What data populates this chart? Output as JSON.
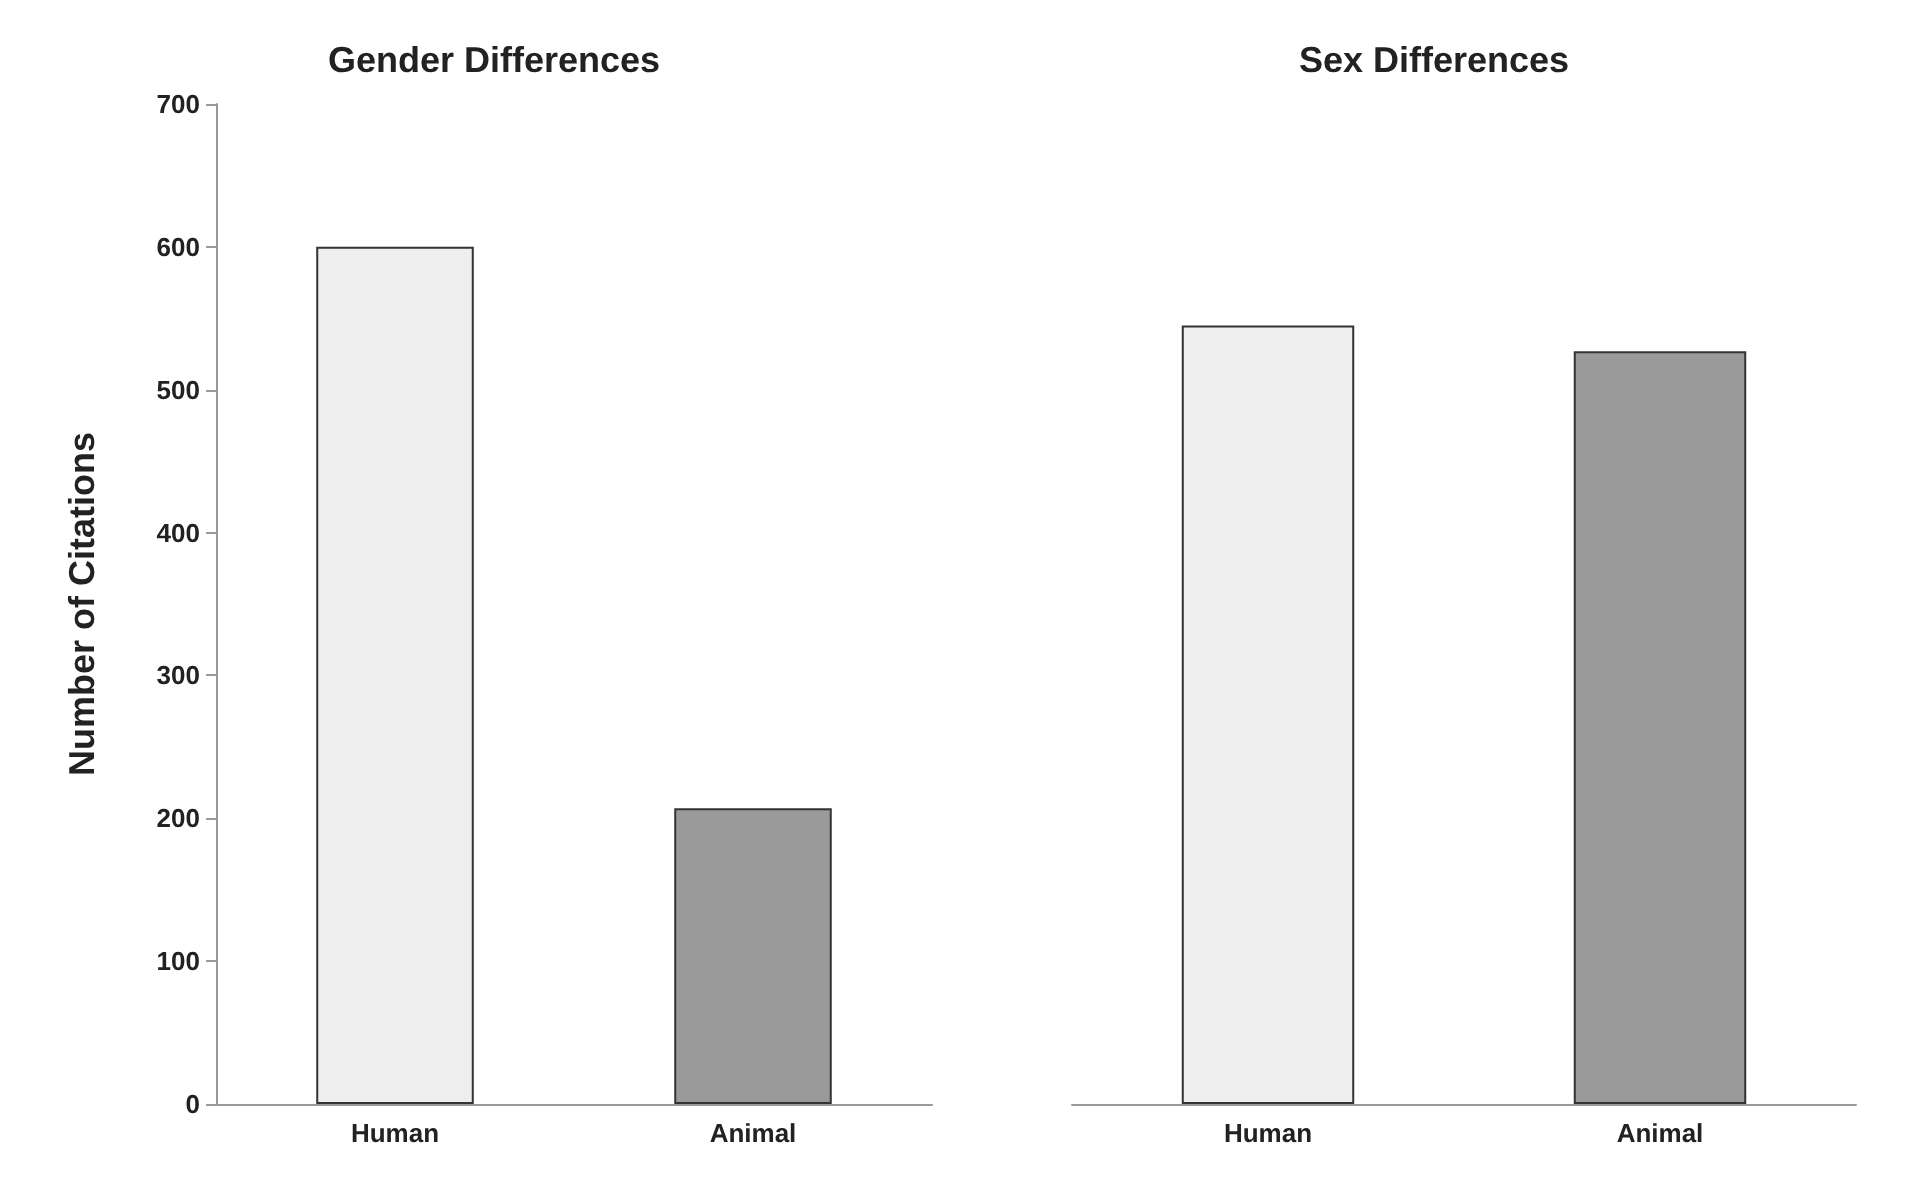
{
  "chart_data": [
    {
      "type": "bar",
      "title": "Gender Differences",
      "ylabel": "Number of Citations",
      "categories": [
        "Human",
        "Animal"
      ],
      "values": [
        600,
        207
      ],
      "colors": [
        "#eeeeee",
        "#9a9a9a"
      ],
      "ylim": [
        0,
        700
      ],
      "yticks": [
        0,
        100,
        200,
        300,
        400,
        500,
        600,
        700
      ]
    },
    {
      "type": "bar",
      "title": "Sex Differences",
      "categories": [
        "Human",
        "Animal"
      ],
      "values": [
        545,
        527
      ],
      "colors": [
        "#eeeeee",
        "#9a9a9a"
      ],
      "ylim": [
        0,
        700
      ],
      "yticks": [
        0,
        100,
        200,
        300,
        400,
        500,
        600,
        700
      ],
      "tick_labels": "x"
    }
  ]
}
